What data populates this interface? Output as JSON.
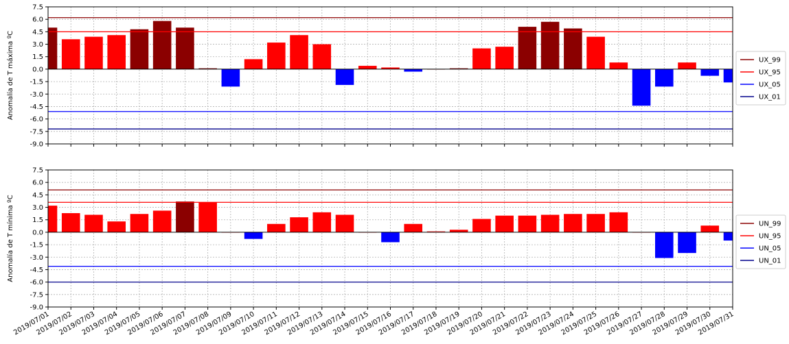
{
  "chart_data": [
    {
      "type": "bar",
      "ylabel": "Anomalía de T máxima ºC",
      "ylim": [
        -9.0,
        7.5
      ],
      "yticks": [
        "7.5",
        "6.0",
        "4.5",
        "3.0",
        "1.5",
        "0.0",
        "-1.5",
        "-3.0",
        "-4.5",
        "-6.0",
        "-7.5",
        "-9.0"
      ],
      "grid": true,
      "legend_position": "right",
      "categories": [
        "2019/07/01",
        "2019/07/02",
        "2019/07/03",
        "2019/07/04",
        "2019/07/05",
        "2019/07/06",
        "2019/07/07",
        "2019/07/08",
        "2019/07/09",
        "2019/07/10",
        "2019/07/11",
        "2019/07/12",
        "2019/07/13",
        "2019/07/14",
        "2019/07/15",
        "2019/07/16",
        "2019/07/17",
        "2019/07/18",
        "2019/07/19",
        "2019/07/20",
        "2019/07/21",
        "2019/07/22",
        "2019/07/23",
        "2019/07/24",
        "2019/07/25",
        "2019/07/26",
        "2019/07/27",
        "2019/07/28",
        "2019/07/29",
        "2019/07/30",
        "2019/07/31"
      ],
      "values": [
        5.0,
        3.6,
        3.9,
        4.1,
        4.8,
        5.8,
        5.0,
        0.1,
        -2.1,
        1.2,
        3.2,
        4.1,
        3.0,
        -1.9,
        0.4,
        0.2,
        -0.3,
        0.0,
        0.1,
        2.5,
        2.7,
        5.1,
        5.7,
        4.9,
        3.9,
        0.8,
        -4.4,
        -2.1,
        0.8,
        -0.8,
        -1.6
      ],
      "bar_colors": [
        "#8b0000",
        "#ff0000",
        "#ff0000",
        "#ff0000",
        "#8b0000",
        "#8b0000",
        "#8b0000",
        "#8b0000",
        "#0000ff",
        "#ff0000",
        "#ff0000",
        "#ff0000",
        "#ff0000",
        "#0000ff",
        "#ff0000",
        "#ff0000",
        "#0000ff",
        "#8b0000",
        "#8b0000",
        "#ff0000",
        "#ff0000",
        "#8b0000",
        "#8b0000",
        "#8b0000",
        "#ff0000",
        "#ff0000",
        "#0000ff",
        "#0000ff",
        "#ff0000",
        "#0000ff",
        "#0000ff"
      ],
      "thresholds": [
        {
          "name": "UX_99",
          "value": 6.2,
          "color": "#8b0000"
        },
        {
          "name": "UX_95",
          "value": 4.5,
          "color": "#ff0000"
        },
        {
          "name": "UX_05",
          "value": -5.1,
          "color": "#0000ff"
        },
        {
          "name": "UX_01",
          "value": -7.2,
          "color": "#00008b"
        }
      ]
    },
    {
      "type": "bar",
      "ylabel": "Anomalía de T mínima ºC",
      "ylim": [
        -9.0,
        7.5
      ],
      "yticks": [
        "7.5",
        "6.0",
        "4.5",
        "3.0",
        "1.5",
        "0.0",
        "-1.5",
        "-3.0",
        "-4.5",
        "-6.0",
        "-7.5",
        "-9.0"
      ],
      "grid": true,
      "legend_position": "right",
      "categories": [
        "2019/07/01",
        "2019/07/02",
        "2019/07/03",
        "2019/07/04",
        "2019/07/05",
        "2019/07/06",
        "2019/07/07",
        "2019/07/08",
        "2019/07/09",
        "2019/07/10",
        "2019/07/11",
        "2019/07/12",
        "2019/07/13",
        "2019/07/14",
        "2019/07/15",
        "2019/07/16",
        "2019/07/17",
        "2019/07/18",
        "2019/07/19",
        "2019/07/20",
        "2019/07/21",
        "2019/07/22",
        "2019/07/23",
        "2019/07/24",
        "2019/07/25",
        "2019/07/26",
        "2019/07/27",
        "2019/07/28",
        "2019/07/29",
        "2019/07/30",
        "2019/07/31"
      ],
      "values": [
        3.2,
        2.3,
        2.1,
        1.3,
        2.2,
        2.6,
        3.7,
        3.6,
        0.0,
        -0.8,
        1.0,
        1.8,
        2.4,
        2.1,
        0.0,
        -1.2,
        1.0,
        0.1,
        0.3,
        1.6,
        2.0,
        2.0,
        2.1,
        2.2,
        2.2,
        2.4,
        0.0,
        -3.1,
        -2.5,
        0.8,
        -1.0
      ],
      "bar_colors": [
        "#ff0000",
        "#ff0000",
        "#ff0000",
        "#ff0000",
        "#ff0000",
        "#ff0000",
        "#8b0000",
        "#ff0000",
        "#ff0000",
        "#0000ff",
        "#ff0000",
        "#ff0000",
        "#ff0000",
        "#ff0000",
        "#ff0000",
        "#0000ff",
        "#ff0000",
        "#ff0000",
        "#ff0000",
        "#ff0000",
        "#ff0000",
        "#ff0000",
        "#ff0000",
        "#ff0000",
        "#ff0000",
        "#ff0000",
        "#ff0000",
        "#0000ff",
        "#0000ff",
        "#ff0000",
        "#0000ff"
      ],
      "thresholds": [
        {
          "name": "UN_99",
          "value": 5.1,
          "color": "#8b0000"
        },
        {
          "name": "UN_95",
          "value": 3.6,
          "color": "#ff0000"
        },
        {
          "name": "UN_05",
          "value": -4.1,
          "color": "#0000ff"
        },
        {
          "name": "UN_01",
          "value": -6.0,
          "color": "#00008b"
        }
      ]
    }
  ]
}
